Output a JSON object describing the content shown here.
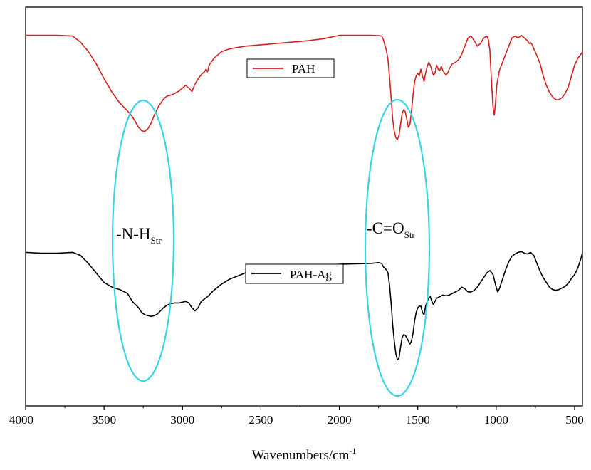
{
  "chart_data": {
    "type": "line",
    "title": "",
    "xlabel": "Wavenumbers/cm",
    "xlabel_sup": "-1",
    "ylabel": "",
    "xlim": [
      4000,
      450
    ],
    "x_reversed": true,
    "y_ticks_shown": false,
    "grid": false,
    "legend_style": "each series has its own boxed legend near its trace",
    "x_ticks": [
      4000,
      3500,
      3000,
      2500,
      2000,
      1500,
      1000,
      500
    ],
    "x_tick_labels": [
      "4000",
      "3500",
      "3000",
      "2500",
      "2000",
      "1500",
      "1000",
      "500"
    ],
    "series": [
      {
        "name": "PAH",
        "color": "#d42020",
        "ylim": [
          0,
          100
        ],
        "points": [
          [
            4000,
            96
          ],
          [
            3800,
            96
          ],
          [
            3700,
            95.5
          ],
          [
            3650,
            91
          ],
          [
            3600,
            84
          ],
          [
            3550,
            75
          ],
          [
            3500,
            64
          ],
          [
            3450,
            54
          ],
          [
            3400,
            46
          ],
          [
            3350,
            40
          ],
          [
            3320,
            36
          ],
          [
            3300,
            32
          ],
          [
            3280,
            28
          ],
          [
            3260,
            25.5
          ],
          [
            3240,
            25
          ],
          [
            3220,
            27
          ],
          [
            3200,
            31
          ],
          [
            3180,
            37
          ],
          [
            3150,
            44
          ],
          [
            3120,
            49
          ],
          [
            3100,
            51
          ],
          [
            3070,
            52
          ],
          [
            3050,
            53
          ],
          [
            3020,
            55
          ],
          [
            3000,
            57
          ],
          [
            2980,
            59
          ],
          [
            2960,
            57
          ],
          [
            2940,
            54.5
          ],
          [
            2920,
            60
          ],
          [
            2900,
            64
          ],
          [
            2880,
            67
          ],
          [
            2860,
            69
          ],
          [
            2850,
            71
          ],
          [
            2840,
            69
          ],
          [
            2830,
            74
          ],
          [
            2800,
            79
          ],
          [
            2750,
            84
          ],
          [
            2700,
            86
          ],
          [
            2600,
            88
          ],
          [
            2500,
            89
          ],
          [
            2400,
            90
          ],
          [
            2300,
            91
          ],
          [
            2200,
            92
          ],
          [
            2100,
            93.5
          ],
          [
            2000,
            96
          ],
          [
            1900,
            96
          ],
          [
            1800,
            96
          ],
          [
            1750,
            95.8
          ],
          [
            1730,
            95.5
          ],
          [
            1720,
            93
          ],
          [
            1700,
            85
          ],
          [
            1690,
            78
          ],
          [
            1680,
            65
          ],
          [
            1670,
            50
          ],
          [
            1660,
            34
          ],
          [
            1650,
            25
          ],
          [
            1640,
            20.5
          ],
          [
            1630,
            19
          ],
          [
            1620,
            22
          ],
          [
            1610,
            30
          ],
          [
            1600,
            38
          ],
          [
            1590,
            41
          ],
          [
            1580,
            39.5
          ],
          [
            1570,
            34
          ],
          [
            1560,
            28
          ],
          [
            1550,
            30
          ],
          [
            1540,
            40
          ],
          [
            1530,
            52
          ],
          [
            1520,
            62
          ],
          [
            1510,
            66
          ],
          [
            1500,
            68
          ],
          [
            1490,
            66
          ],
          [
            1480,
            71
          ],
          [
            1470,
            66
          ],
          [
            1460,
            62
          ],
          [
            1450,
            68
          ],
          [
            1440,
            73
          ],
          [
            1430,
            76
          ],
          [
            1420,
            74
          ],
          [
            1410,
            70
          ],
          [
            1400,
            66.5
          ],
          [
            1390,
            68
          ],
          [
            1380,
            74
          ],
          [
            1370,
            71
          ],
          [
            1360,
            70
          ],
          [
            1350,
            73
          ],
          [
            1340,
            70
          ],
          [
            1320,
            66.5
          ],
          [
            1310,
            68
          ],
          [
            1300,
            71
          ],
          [
            1280,
            75
          ],
          [
            1260,
            76
          ],
          [
            1240,
            78
          ],
          [
            1220,
            82
          ],
          [
            1200,
            88
          ],
          [
            1180,
            94
          ],
          [
            1160,
            95.5
          ],
          [
            1140,
            92
          ],
          [
            1120,
            88
          ],
          [
            1100,
            90
          ],
          [
            1080,
            94
          ],
          [
            1060,
            95.5
          ],
          [
            1050,
            93
          ],
          [
            1040,
            85
          ],
          [
            1030,
            62
          ],
          [
            1020,
            43
          ],
          [
            1012,
            37
          ],
          [
            1005,
            45
          ],
          [
            995,
            60
          ],
          [
            980,
            70
          ],
          [
            960,
            76
          ],
          [
            940,
            82
          ],
          [
            920,
            88
          ],
          [
            900,
            94
          ],
          [
            880,
            95.5
          ],
          [
            860,
            94
          ],
          [
            850,
            95
          ],
          [
            840,
            96
          ],
          [
            820,
            94
          ],
          [
            800,
            92
          ],
          [
            790,
            90
          ],
          [
            780,
            90.5
          ],
          [
            770,
            89
          ],
          [
            760,
            86
          ],
          [
            740,
            81
          ],
          [
            720,
            75
          ],
          [
            700,
            66
          ],
          [
            680,
            59
          ],
          [
            660,
            54
          ],
          [
            640,
            50.5
          ],
          [
            620,
            48.5
          ],
          [
            600,
            48.5
          ],
          [
            580,
            50
          ],
          [
            560,
            53
          ],
          [
            540,
            58
          ],
          [
            520,
            66
          ],
          [
            500,
            74
          ],
          [
            480,
            79
          ],
          [
            460,
            82
          ],
          [
            450,
            84
          ]
        ]
      },
      {
        "name": "PAH-Ag",
        "color": "#000000",
        "ylim": [
          0,
          100
        ],
        "points": [
          [
            4000,
            80
          ],
          [
            3900,
            79.5
          ],
          [
            3800,
            79.5
          ],
          [
            3700,
            80
          ],
          [
            3650,
            78
          ],
          [
            3600,
            73
          ],
          [
            3550,
            67
          ],
          [
            3500,
            61
          ],
          [
            3450,
            58
          ],
          [
            3400,
            56.5
          ],
          [
            3350,
            54
          ],
          [
            3320,
            49
          ],
          [
            3300,
            47
          ],
          [
            3280,
            45
          ],
          [
            3260,
            42
          ],
          [
            3240,
            40.5
          ],
          [
            3220,
            40
          ],
          [
            3200,
            39.5
          ],
          [
            3180,
            40
          ],
          [
            3160,
            41
          ],
          [
            3140,
            43
          ],
          [
            3120,
            45
          ],
          [
            3100,
            46.5
          ],
          [
            3080,
            47.5
          ],
          [
            3050,
            48
          ],
          [
            3020,
            48
          ],
          [
            3000,
            48.5
          ],
          [
            2980,
            49
          ],
          [
            2960,
            48
          ],
          [
            2940,
            45
          ],
          [
            2920,
            43
          ],
          [
            2900,
            45
          ],
          [
            2880,
            49
          ],
          [
            2860,
            50.5
          ],
          [
            2840,
            52
          ],
          [
            2820,
            54
          ],
          [
            2800,
            56
          ],
          [
            2750,
            60
          ],
          [
            2700,
            63
          ],
          [
            2650,
            65
          ],
          [
            2600,
            67
          ],
          [
            2550,
            68.5
          ],
          [
            2500,
            69.5
          ],
          [
            2400,
            70.5
          ],
          [
            2300,
            71
          ],
          [
            2200,
            71.5
          ],
          [
            2100,
            72
          ],
          [
            2000,
            72.5
          ],
          [
            1900,
            72.8
          ],
          [
            1800,
            73
          ],
          [
            1750,
            73.5
          ],
          [
            1730,
            73
          ],
          [
            1720,
            71
          ],
          [
            1710,
            70
          ],
          [
            1700,
            69
          ],
          [
            1690,
            67
          ],
          [
            1680,
            59
          ],
          [
            1670,
            48
          ],
          [
            1660,
            34
          ],
          [
            1650,
            24
          ],
          [
            1640,
            16
          ],
          [
            1630,
            12
          ],
          [
            1620,
            13
          ],
          [
            1610,
            20
          ],
          [
            1600,
            26
          ],
          [
            1590,
            28
          ],
          [
            1580,
            27.5
          ],
          [
            1570,
            26
          ],
          [
            1560,
            24
          ],
          [
            1550,
            22
          ],
          [
            1540,
            24
          ],
          [
            1530,
            29
          ],
          [
            1520,
            37
          ],
          [
            1510,
            42
          ],
          [
            1500,
            45
          ],
          [
            1490,
            46
          ],
          [
            1480,
            46
          ],
          [
            1470,
            42
          ],
          [
            1460,
            40.5
          ],
          [
            1450,
            46
          ],
          [
            1440,
            49
          ],
          [
            1430,
            51
          ],
          [
            1420,
            52
          ],
          [
            1410,
            49
          ],
          [
            1400,
            47
          ],
          [
            1390,
            49
          ],
          [
            1380,
            51
          ],
          [
            1360,
            52
          ],
          [
            1340,
            53
          ],
          [
            1320,
            52.5
          ],
          [
            1300,
            53
          ],
          [
            1280,
            54
          ],
          [
            1260,
            55
          ],
          [
            1240,
            56
          ],
          [
            1220,
            58
          ],
          [
            1200,
            57
          ],
          [
            1180,
            55
          ],
          [
            1160,
            55
          ],
          [
            1140,
            56
          ],
          [
            1120,
            58
          ],
          [
            1100,
            61
          ],
          [
            1080,
            64
          ],
          [
            1060,
            67
          ],
          [
            1040,
            68.5
          ],
          [
            1020,
            66
          ],
          [
            1010,
            62
          ],
          [
            1000,
            58
          ],
          [
            990,
            55
          ],
          [
            980,
            57
          ],
          [
            960,
            63
          ],
          [
            940,
            69
          ],
          [
            920,
            74
          ],
          [
            900,
            77.5
          ],
          [
            880,
            79
          ],
          [
            860,
            80
          ],
          [
            840,
            80.5
          ],
          [
            820,
            79.5
          ],
          [
            800,
            79
          ],
          [
            780,
            80
          ],
          [
            760,
            78
          ],
          [
            740,
            73
          ],
          [
            720,
            68
          ],
          [
            700,
            64
          ],
          [
            680,
            61
          ],
          [
            660,
            58
          ],
          [
            640,
            56.5
          ],
          [
            620,
            56
          ],
          [
            600,
            56.5
          ],
          [
            580,
            57.5
          ],
          [
            560,
            58.5
          ],
          [
            540,
            60.5
          ],
          [
            520,
            63.5
          ],
          [
            500,
            66
          ],
          [
            480,
            70
          ],
          [
            460,
            76
          ],
          [
            450,
            80
          ]
        ]
      }
    ],
    "annotations": [
      {
        "text": "-N-H",
        "subscript": "Str"
      },
      {
        "text": "-C=O",
        "subscript": "Str"
      }
    ],
    "highlight_ellipse_color": "#38d5e6"
  }
}
